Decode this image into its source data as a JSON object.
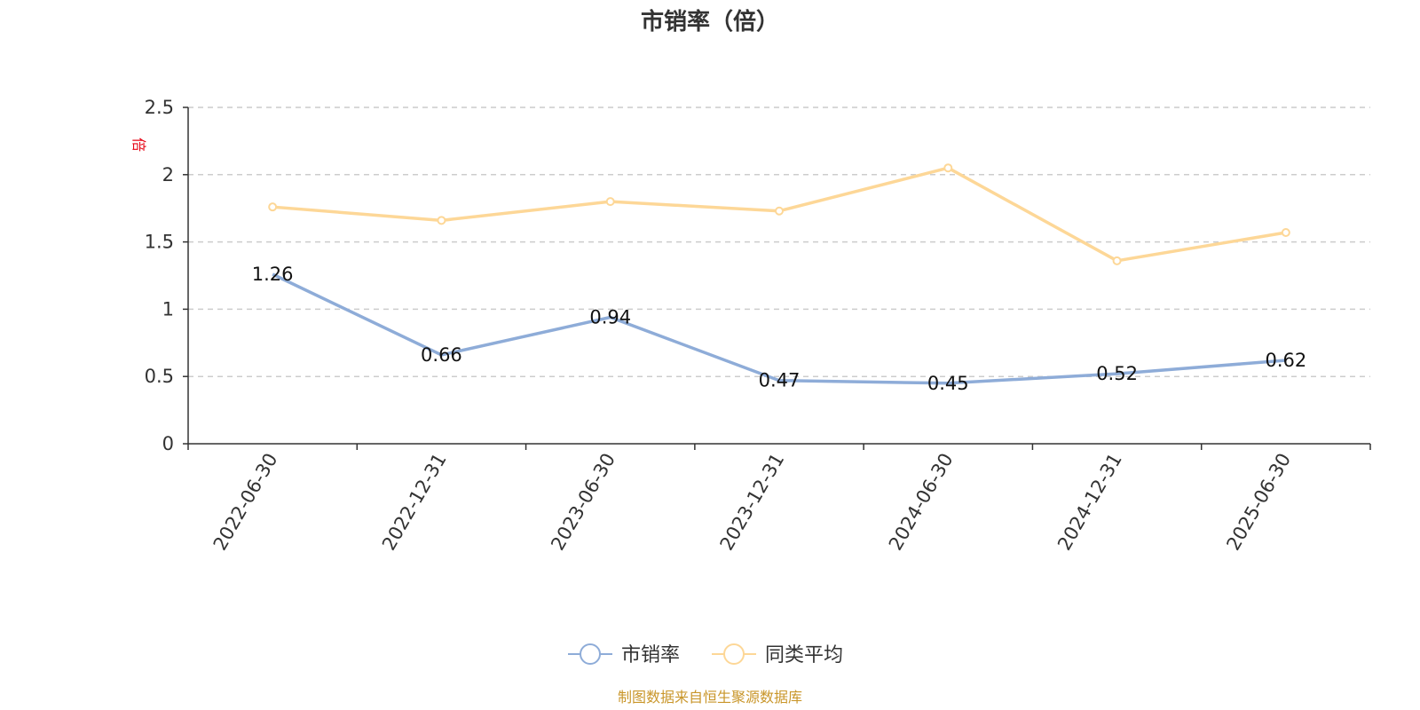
{
  "chart_data": {
    "type": "line",
    "title": "市销率（倍）",
    "unit_label": "倍",
    "categories": [
      "2022-06-30",
      "2022-12-31",
      "2023-06-30",
      "2023-12-31",
      "2024-06-30",
      "2024-12-31",
      "2025-06-30"
    ],
    "series": [
      {
        "name": "市销率",
        "color": "#8eacd8",
        "values": [
          1.26,
          0.66,
          0.94,
          0.47,
          0.45,
          0.52,
          0.62
        ],
        "show_labels": true
      },
      {
        "name": "同类平均",
        "color": "#fdd797",
        "values": [
          1.76,
          1.66,
          1.8,
          1.73,
          2.05,
          1.36,
          1.57
        ],
        "show_labels": false
      }
    ],
    "ylim": [
      0,
      2.5
    ],
    "yticks": [
      "0",
      "0.5",
      "1",
      "1.5",
      "2",
      "2.5"
    ],
    "grid": true,
    "legend_position": "bottom-center",
    "source": "制图数据来自恒生聚源数据库"
  }
}
